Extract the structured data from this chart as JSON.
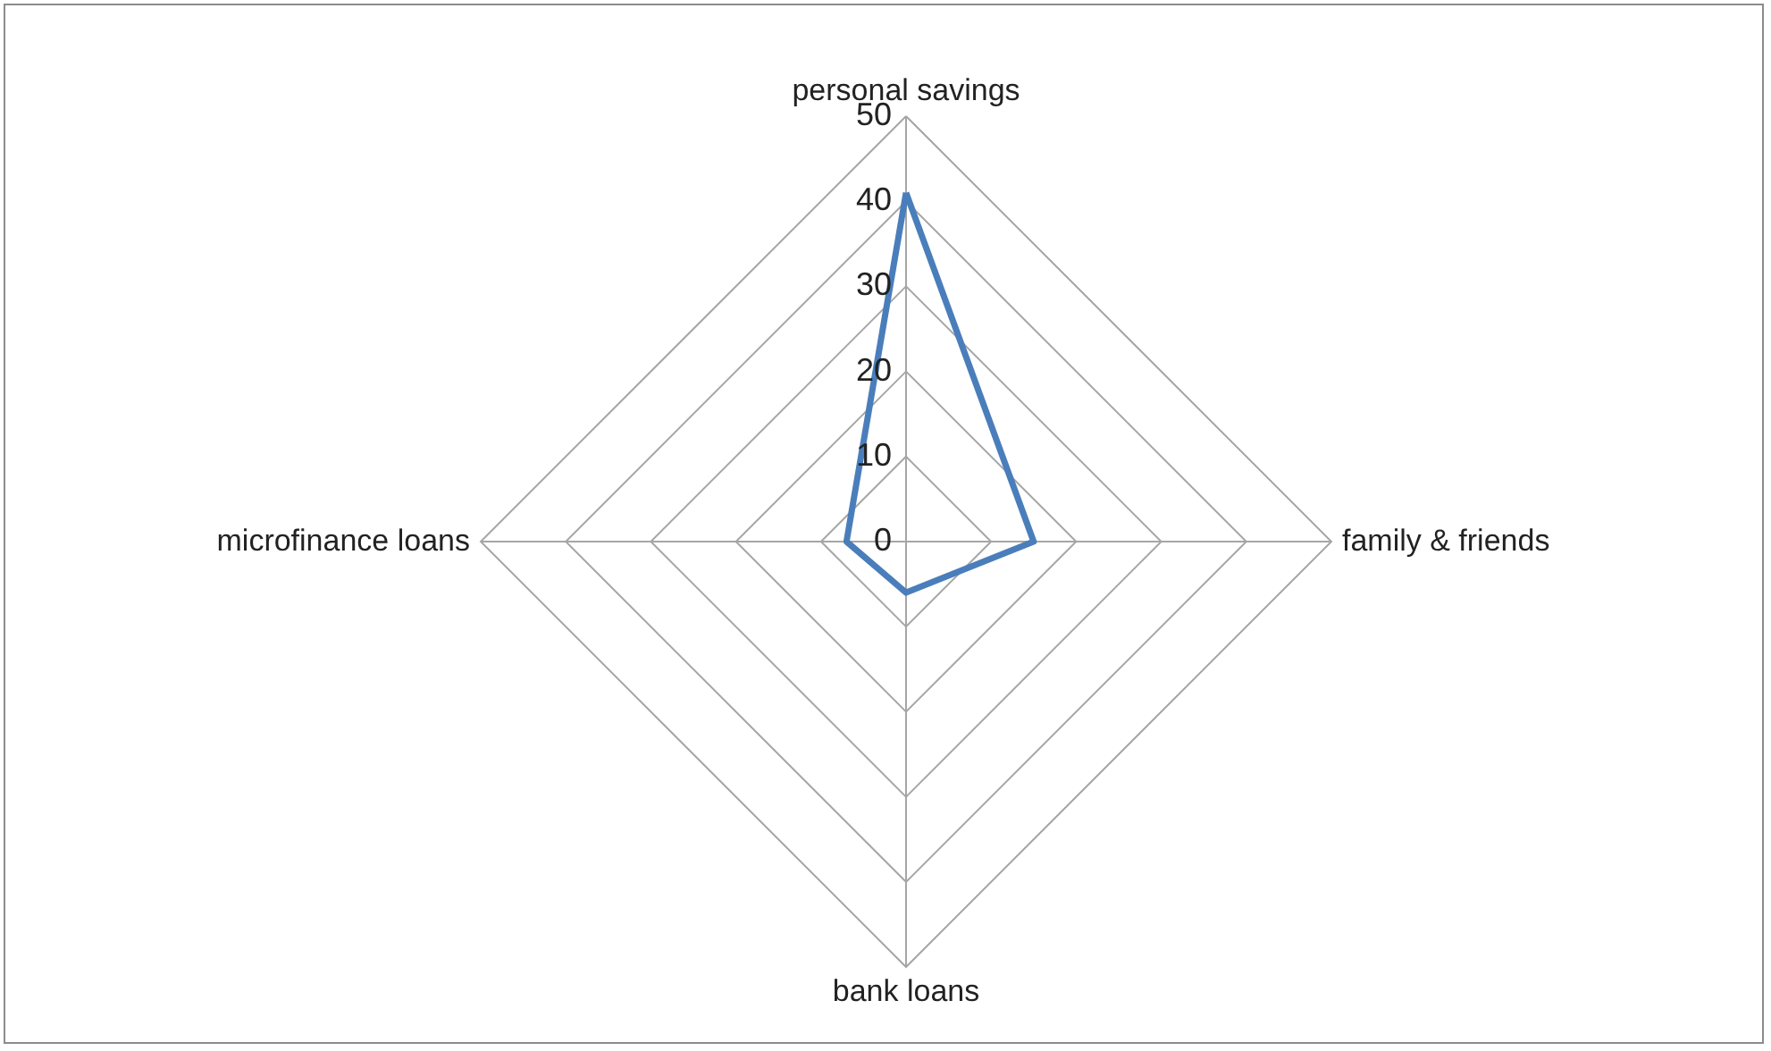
{
  "chart_data": {
    "type": "radar",
    "categories": [
      "personal savings",
      "family & friends",
      "bank loans",
      "microfinance loans"
    ],
    "series": [
      {
        "color": "#4a7ebb",
        "values": [
          41,
          15,
          6,
          7
        ]
      }
    ],
    "ylim": [
      0,
      50
    ],
    "yticks": [
      {
        "value": 0,
        "label": "0"
      },
      10,
      20,
      30,
      40,
      50
    ],
    "grid": true,
    "marker": "none",
    "line_style": "solid"
  }
}
